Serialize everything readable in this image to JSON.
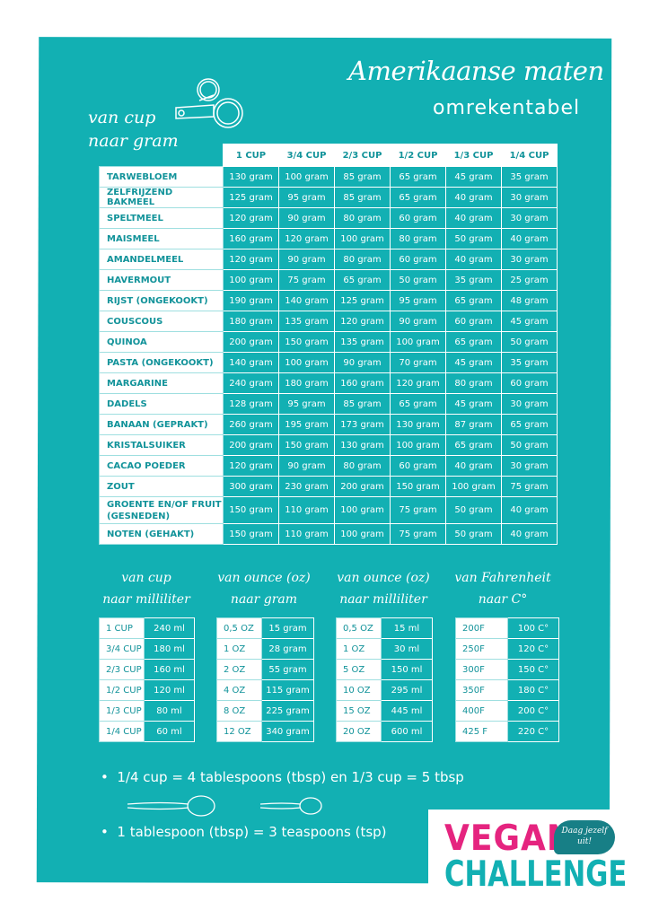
{
  "title": "Amerikaanse maten",
  "subtitle": "omrekentabel",
  "main_heading": [
    "van cup",
    "naar gram"
  ],
  "main_table": {
    "columns": [
      "1 CUP",
      "3/4 CUP",
      "2/3 CUP",
      "1/2 CUP",
      "1/3 CUP",
      "1/4 CUP"
    ],
    "rows": [
      {
        "label": "TARWEBLOEM",
        "values": [
          "130 gram",
          "100 gram",
          "85 gram",
          "65 gram",
          "45 gram",
          "35 gram"
        ]
      },
      {
        "label": "ZELFRIJZEND BAKMEEL",
        "values": [
          "125 gram",
          "95 gram",
          "85 gram",
          "65 gram",
          "40 gram",
          "30 gram"
        ]
      },
      {
        "label": "SPELTMEEL",
        "values": [
          "120 gram",
          "90 gram",
          "80 gram",
          "60 gram",
          "40 gram",
          "30 gram"
        ]
      },
      {
        "label": "MAISMEEL",
        "values": [
          "160 gram",
          "120 gram",
          "100 gram",
          "80 gram",
          "50 gram",
          "40 gram"
        ]
      },
      {
        "label": "AMANDELMEEL",
        "values": [
          "120 gram",
          "90 gram",
          "80 gram",
          "60 gram",
          "40 gram",
          "30 gram"
        ]
      },
      {
        "label": "HAVERMOUT",
        "values": [
          "100 gram",
          "75 gram",
          "65 gram",
          "50 gram",
          "35 gram",
          "25 gram"
        ]
      },
      {
        "label": "RIJST (ONGEKOOKT)",
        "values": [
          "190 gram",
          "140 gram",
          "125 gram",
          "95 gram",
          "65 gram",
          "48 gram"
        ]
      },
      {
        "label": "COUSCOUS",
        "values": [
          "180 gram",
          "135 gram",
          "120 gram",
          "90 gram",
          "60 gram",
          "45 gram"
        ]
      },
      {
        "label": "QUINOA",
        "values": [
          "200 gram",
          "150 gram",
          "135 gram",
          "100 gram",
          "65 gram",
          "50 gram"
        ]
      },
      {
        "label": "PASTA (ONGEKOOKT)",
        "values": [
          "140 gram",
          "100 gram",
          "90 gram",
          "70 gram",
          "45 gram",
          "35 gram"
        ]
      },
      {
        "label": "MARGARINE",
        "values": [
          "240 gram",
          "180 gram",
          "160 gram",
          "120 gram",
          "80 gram",
          "60 gram"
        ]
      },
      {
        "label": "DADELS",
        "values": [
          "128 gram",
          "95 gram",
          "85 gram",
          "65 gram",
          "45 gram",
          "30 gram"
        ]
      },
      {
        "label": "BANAAN (GEPRAKT)",
        "values": [
          "260 gram",
          "195 gram",
          "173 gram",
          "130 gram",
          "87 gram",
          "65 gram"
        ]
      },
      {
        "label": "KRISTALSUIKER",
        "values": [
          "200 gram",
          "150 gram",
          "130 gram",
          "100 gram",
          "65 gram",
          "50 gram"
        ]
      },
      {
        "label": "CACAO POEDER",
        "values": [
          "120 gram",
          "90 gram",
          "80 gram",
          "60 gram",
          "40 gram",
          "30 gram"
        ]
      },
      {
        "label": "ZOUT",
        "values": [
          "300 gram",
          "230 gram",
          "200 gram",
          "150 gram",
          "100 gram",
          "75 gram"
        ]
      },
      {
        "label": "GROENTE EN/OF FRUIT (GESNEDEN)",
        "values": [
          "150 gram",
          "110 gram",
          "100 gram",
          "75 gram",
          "50 gram",
          "40 gram"
        ]
      },
      {
        "label": "NOTEN (GEHAKT)",
        "values": [
          "150 gram",
          "110 gram",
          "100 gram",
          "75 gram",
          "50 gram",
          "40 gram"
        ]
      }
    ]
  },
  "small_tables": [
    {
      "heading": [
        "van cup",
        "naar milliliter"
      ],
      "rows": [
        [
          "1 CUP",
          "240 ml"
        ],
        [
          "3/4 CUP",
          "180 ml"
        ],
        [
          "2/3 CUP",
          "160 ml"
        ],
        [
          "1/2 CUP",
          "120 ml"
        ],
        [
          "1/3 CUP",
          "80 ml"
        ],
        [
          "1/4 CUP",
          "60 ml"
        ]
      ]
    },
    {
      "heading": [
        "van  ounce (oz)",
        "naar gram"
      ],
      "rows": [
        [
          "0,5 OZ",
          "15 gram"
        ],
        [
          "1 OZ",
          "28 gram"
        ],
        [
          "2 OZ",
          "55 gram"
        ],
        [
          "4 OZ",
          "115 gram"
        ],
        [
          "8 OZ",
          "225 gram"
        ],
        [
          "12 OZ",
          "340 gram"
        ]
      ]
    },
    {
      "heading": [
        "van  ounce (oz)",
        "naar milliliter"
      ],
      "rows": [
        [
          "0,5 OZ",
          "15 ml"
        ],
        [
          "1 OZ",
          "30 ml"
        ],
        [
          "5 OZ",
          "150 ml"
        ],
        [
          "10 OZ",
          "295 ml"
        ],
        [
          "15 OZ",
          "445 ml"
        ],
        [
          "20 OZ",
          "600 ml"
        ]
      ]
    },
    {
      "heading": [
        "van Fahrenheit",
        "naar  C°"
      ],
      "rows": [
        [
          "200F",
          "100 C°"
        ],
        [
          "250F",
          "120 C°"
        ],
        [
          "300F",
          "150 C°"
        ],
        [
          "350F",
          "180 C°"
        ],
        [
          "400F",
          "200 C°"
        ],
        [
          "425 F",
          "220 C°"
        ]
      ]
    }
  ],
  "notes": [
    "1/4 cup = 4 tablespoons (tbsp) en  1/3 cup = 5 tbsp",
    "1 tablespoon (tbsp) = 3 teaspoons (tsp)"
  ],
  "logo": {
    "line1": "VEGAN",
    "line2": "CHALLENGE",
    "tagline": "Daag jezelf uit!"
  },
  "colors": {
    "background": "#12b0b3",
    "label_text": "#12939a",
    "logo_pink": "#e5247f",
    "bubble": "#177f86"
  }
}
